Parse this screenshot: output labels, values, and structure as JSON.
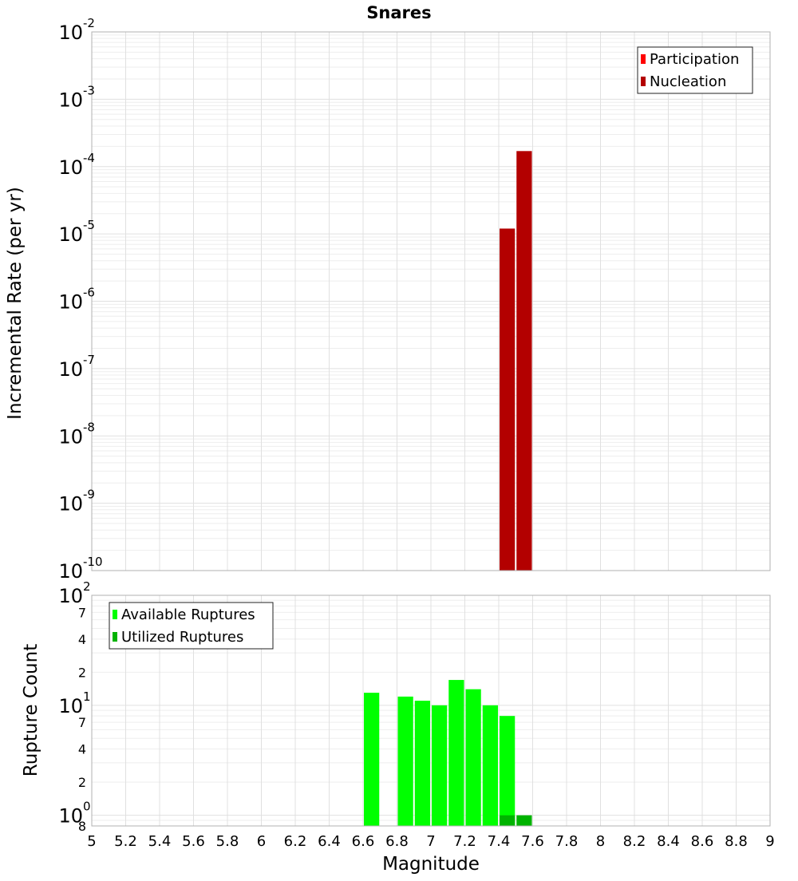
{
  "chart_data": [
    {
      "type": "bar",
      "title": "Snares",
      "xlabel": "",
      "ylabel": "Incremental Rate (per yr)",
      "yscale": "log",
      "xlim": [
        5,
        9
      ],
      "ylim": [
        1e-10,
        0.01
      ],
      "y_ticks": [
        {
          "base": "10",
          "exp": "-2"
        },
        {
          "base": "10",
          "exp": "-3"
        },
        {
          "base": "10",
          "exp": "-4"
        },
        {
          "base": "10",
          "exp": "-5"
        },
        {
          "base": "10",
          "exp": "-6"
        },
        {
          "base": "10",
          "exp": "-7"
        },
        {
          "base": "10",
          "exp": "-8"
        },
        {
          "base": "10",
          "exp": "-9"
        },
        {
          "base": "10",
          "exp": "-10"
        }
      ],
      "bar_width": 0.1,
      "legend_position": "top-right",
      "series": [
        {
          "name": "Participation",
          "color": "#ff0000",
          "x": [],
          "values": []
        },
        {
          "name": "Nucleation",
          "color": "#b30000",
          "x": [
            7.45,
            7.55
          ],
          "values": [
            1.2e-05,
            0.00017
          ]
        }
      ]
    },
    {
      "type": "bar",
      "title": "",
      "xlabel": "Magnitude",
      "ylabel": "Rupture Count",
      "yscale": "log",
      "xlim": [
        5,
        9
      ],
      "ylim": [
        0.8,
        100
      ],
      "x_ticks": [
        "5",
        "5.2",
        "5.4",
        "5.6",
        "5.8",
        "6",
        "6.2",
        "6.4",
        "6.6",
        "6.8",
        "7",
        "7.2",
        "7.4",
        "7.6",
        "7.8",
        "8",
        "8.2",
        "8.4",
        "8.6",
        "8.8",
        "9"
      ],
      "y_tick_labels": [
        {
          "value": 100,
          "base": "10",
          "exp": "2"
        },
        {
          "value": 70,
          "label": "7"
        },
        {
          "value": 40,
          "label": "4"
        },
        {
          "value": 20,
          "label": "2"
        },
        {
          "value": 10,
          "base": "10",
          "exp": "1"
        },
        {
          "value": 7,
          "label": "7"
        },
        {
          "value": 4,
          "label": "4"
        },
        {
          "value": 2,
          "label": "2"
        },
        {
          "value": 1,
          "base": "10",
          "exp": "0"
        },
        {
          "value": 0.8,
          "label": "8"
        }
      ],
      "bar_width": 0.1,
      "legend_position": "top-left",
      "series": [
        {
          "name": "Available Ruptures",
          "color": "#00ff00",
          "x": [
            6.65,
            6.85,
            6.95,
            7.05,
            7.15,
            7.25,
            7.35,
            7.45
          ],
          "values": [
            13,
            12,
            11,
            10,
            17,
            14,
            10,
            8
          ]
        },
        {
          "name": "Utilized Ruptures",
          "color": "#00b300",
          "x": [
            7.45,
            7.55
          ],
          "values": [
            1,
            1
          ]
        }
      ]
    }
  ]
}
